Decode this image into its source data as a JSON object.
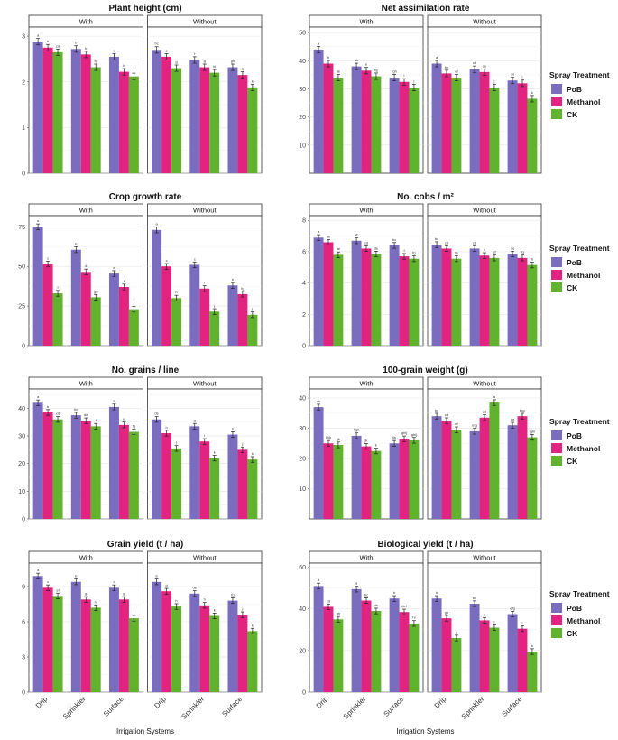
{
  "chart_data": {
    "type": "bar",
    "xlabel": "Irrigation Systems",
    "facets": [
      "With",
      "Without"
    ],
    "categories": [
      "Drip",
      "Sprinkler",
      "Surface"
    ],
    "legend": {
      "title": "Spray Treatment",
      "items": [
        {
          "name": "PoB",
          "color": "#7A6DBF"
        },
        {
          "name": "Methanol",
          "color": "#E2237F"
        },
        {
          "name": "CK",
          "color": "#61B22C"
        }
      ]
    },
    "panels": [
      {
        "title": "Plant height (cm)",
        "ylim": [
          0,
          3.2
        ],
        "yticks": [
          0,
          1,
          2,
          3
        ],
        "values": {
          "With": [
            [
              2.88,
              2.75,
              2.65
            ],
            [
              2.72,
              2.6,
              2.32
            ],
            [
              2.55,
              2.22,
              2.12
            ]
          ],
          "Without": [
            [
              2.7,
              2.55,
              2.3
            ],
            [
              2.48,
              2.32,
              2.2
            ],
            [
              2.32,
              2.15,
              1.88
            ]
          ]
        },
        "letters": {
          "With": [
            [
              "a",
              "b",
              "cd"
            ],
            [
              "b",
              "b",
              "fg"
            ],
            [
              "e",
              "h",
              "i"
            ]
          ],
          "Without": [
            [
              "bc",
              "e",
              "g"
            ],
            [
              "f",
              "g",
              "hi"
            ],
            [
              "gh",
              "ij",
              "k"
            ]
          ]
        }
      },
      {
        "title": "Net assimilation rate",
        "ylim": [
          0,
          52
        ],
        "yticks": [
          10,
          20,
          30,
          40,
          50
        ],
        "values": {
          "With": [
            [
              44,
              39,
              34
            ],
            [
              38,
              36.5,
              34.5
            ],
            [
              34,
              32.5,
              30.5
            ]
          ],
          "Without": [
            [
              39,
              35.5,
              34
            ],
            [
              37,
              36,
              30.5
            ],
            [
              33,
              32,
              26.5
            ]
          ]
        },
        "letters": {
          "With": [
            [
              "a",
              "b",
              "de"
            ],
            [
              "ab",
              "e",
              "fg"
            ],
            [
              "fgh",
              "i",
              "j"
            ]
          ],
          "Without": [
            [
              "a",
              "bc",
              "ef"
            ],
            [
              "cd",
              "de",
              "j"
            ],
            [
              "hi",
              "i",
              "k"
            ]
          ]
        }
      },
      {
        "title": "Crop growth rate",
        "ylim": [
          0,
          82
        ],
        "yticks": [
          0,
          25,
          50,
          75
        ],
        "values": {
          "With": [
            [
              75,
              51.5,
              33
            ],
            [
              60.5,
              46.5,
              30.5
            ],
            [
              45.5,
              37,
              23
            ]
          ],
          "Without": [
            [
              73,
              50,
              30
            ],
            [
              51,
              36,
              21.5
            ],
            [
              38,
              32.5,
              19.5
            ]
          ]
        },
        "letters": {
          "With": [
            [
              "a",
              "c",
              "f"
            ],
            [
              "b",
              "d",
              "gh"
            ],
            [
              "e",
              "f",
              "i"
            ]
          ],
          "Without": [
            [
              "a",
              "c",
              "h"
            ],
            [
              "c",
              "f",
              "j"
            ],
            [
              "e",
              "fg",
              "j"
            ]
          ]
        }
      },
      {
        "title": "No. cobs / m²",
        "ylim": [
          0,
          8.3
        ],
        "yticks": [
          0,
          2,
          4,
          6,
          8
        ],
        "values": {
          "With": [
            [
              6.9,
              6.6,
              5.8
            ],
            [
              6.7,
              6.2,
              5.85
            ],
            [
              6.4,
              5.7,
              5.55
            ]
          ],
          "Without": [
            [
              6.45,
              6.2,
              5.55
            ],
            [
              6.2,
              5.75,
              5.6
            ],
            [
              5.85,
              5.6,
              5.15
            ]
          ]
        },
        "letters": {
          "With": [
            [
              "a",
              "ab",
              "de"
            ],
            [
              "ab",
              "cd",
              "de"
            ],
            [
              "bc",
              "f",
              "fg"
            ]
          ],
          "Without": [
            [
              "bc",
              "cd",
              "fg"
            ],
            [
              "cd",
              "e",
              "ef"
            ],
            [
              "de",
              "fg",
              "h"
            ]
          ]
        }
      },
      {
        "title": "No. grains / line",
        "ylim": [
          0,
          47
        ],
        "yticks": [
          0,
          10,
          20,
          30,
          40
        ],
        "values": {
          "With": [
            [
              42,
              38.5,
              36
            ],
            [
              37.5,
              35.5,
              33.5
            ],
            [
              40.5,
              34,
              31.5
            ]
          ],
          "Without": [
            [
              36,
              31,
              25.5
            ],
            [
              33.5,
              28,
              22
            ],
            [
              30.5,
              25,
              21.5
            ]
          ]
        },
        "letters": {
          "With": [
            [
              "a",
              "b",
              "cd"
            ],
            [
              "bc",
              "de",
              "f"
            ],
            [
              "a",
              "e",
              "fg"
            ]
          ],
          "Without": [
            [
              "de",
              "h",
              "j"
            ],
            [
              "g",
              "i",
              "k"
            ],
            [
              "h",
              "j",
              "k"
            ]
          ]
        }
      },
      {
        "title": "100-grain weight (g)",
        "ylim": [
          0,
          43
        ],
        "yticks": [
          10,
          20,
          30,
          40
        ],
        "values": {
          "With": [
            [
              37,
              25,
              24.5
            ],
            [
              27.5,
              24,
              22.5
            ],
            [
              25,
              26.5,
              26
            ]
          ],
          "Without": [
            [
              34,
              32.5,
              29.5
            ],
            [
              29,
              33.5,
              38.5
            ],
            [
              31,
              34,
              27
            ]
          ]
        },
        "letters": {
          "With": [
            [
              "ab",
              "hijk",
              "ijk"
            ],
            [
              "hgh",
              "jk",
              "k"
            ],
            [
              "ijk",
              "ghij",
              "ghij"
            ]
          ],
          "Without": [
            [
              "bc",
              "cd",
              "ef"
            ],
            [
              "efg",
              "cd",
              "a"
            ],
            [
              "de",
              "bcc",
              "fghi"
            ]
          ]
        }
      },
      {
        "title": "Grain yield (t / ha)",
        "ylim": [
          0,
          11
        ],
        "yticks": [
          0,
          3,
          6,
          9
        ],
        "values": {
          "With": [
            [
              9.9,
              8.9,
              8.2
            ],
            [
              9.4,
              7.9,
              7.2
            ],
            [
              8.9,
              7.9,
              6.3
            ]
          ],
          "Without": [
            [
              9.4,
              8.6,
              7.3
            ],
            [
              8.4,
              7.4,
              6.5
            ],
            [
              7.8,
              6.6,
              5.2
            ]
          ]
        },
        "letters": {
          "With": [
            [
              "a",
              "c",
              "ef"
            ],
            [
              "b",
              "g",
              "hi"
            ],
            [
              "c",
              "g",
              "l"
            ]
          ],
          "Without": [
            [
              "b",
              "d",
              "h"
            ],
            [
              "de",
              "h",
              "k"
            ],
            [
              "fg",
              "j",
              "k"
            ]
          ]
        }
      },
      {
        "title": "Biological yield (t / ha)",
        "ylim": [
          0,
          62
        ],
        "yticks": [
          0,
          20,
          40,
          60
        ],
        "values": {
          "With": [
            [
              51,
              41,
              35
            ],
            [
              49.5,
              44,
              39
            ],
            [
              45,
              38.5,
              33
            ]
          ],
          "Without": [
            [
              45,
              35.5,
              26
            ],
            [
              42.5,
              34.5,
              31
            ],
            [
              37.5,
              30.5,
              19.5
            ]
          ]
        },
        "letters": {
          "With": [
            [
              "a",
              "cd",
              "gh"
            ],
            [
              "a",
              "bc",
              "de"
            ],
            [
              "b",
              "def",
              "hi"
            ]
          ],
          "Without": [
            [
              "b",
              "gh",
              "j"
            ],
            [
              "bc",
              "h",
              "i"
            ],
            [
              "efg",
              "i",
              "k"
            ]
          ]
        }
      }
    ]
  }
}
